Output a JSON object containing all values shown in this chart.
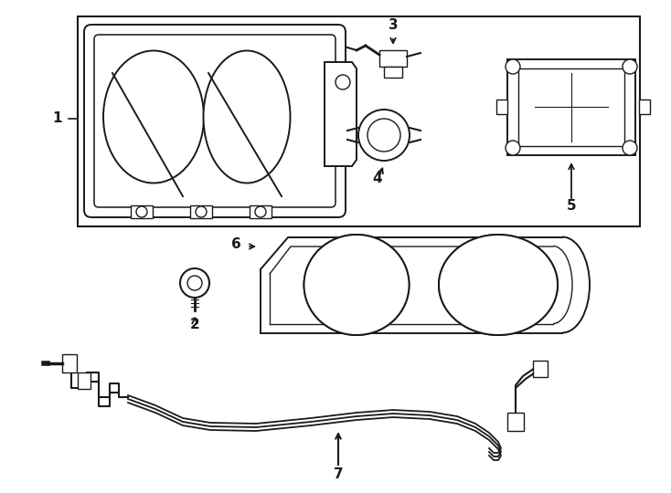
{
  "background_color": "#ffffff",
  "line_color": "#1a1a1a",
  "fig_w": 7.34,
  "fig_h": 5.4,
  "dpi": 100
}
